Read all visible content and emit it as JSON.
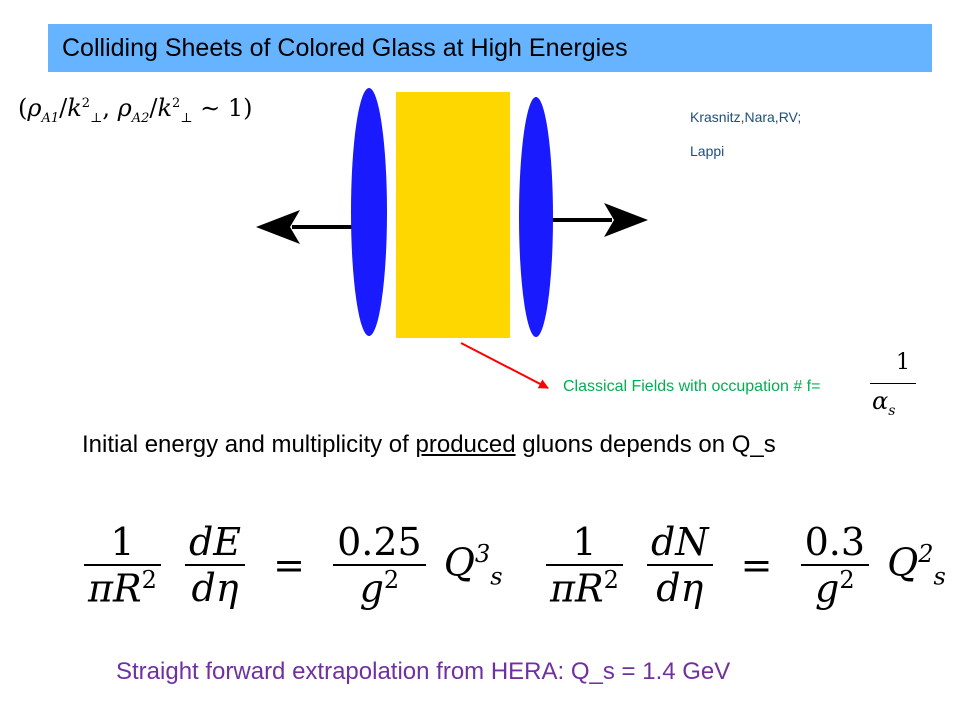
{
  "title": "Colliding Sheets of Colored Glass at High Energies",
  "condition": {
    "open": "(",
    "rho": "ρ",
    "sub1": "A1",
    "slash": "/",
    "k": "k",
    "ksup": "2",
    "ksub": "⊥",
    "comma": ", ",
    "sub2": "A2",
    "sim": " ∼ 1)"
  },
  "credits": [
    "Krasnitz,Nara,RV;",
    "Lappi"
  ],
  "classical_fields": "Classical Fields with occupation # f=",
  "occupation": {
    "numerator": "1",
    "denominator": "α",
    "den_sub": "s"
  },
  "body": {
    "part1": "Initial energy and multiplicity of ",
    "underlined": "produced",
    "part2": " gluons depends on Q_s"
  },
  "formula_energy": {
    "one": "1",
    "den": "πR",
    "den_sup": "2",
    "dnum": "dE",
    "dden": "dη",
    "eq": "=",
    "coef": "0.25",
    "coef_den": "g",
    "coef_den_sup": "2",
    "Q": "Q",
    "Q_sup": "3",
    "Q_sub": "s"
  },
  "formula_number": {
    "one": "1",
    "den": "πR",
    "den_sup": "2",
    "dnum": "dN",
    "dden": "dη",
    "eq": "=",
    "coef": "0.3",
    "coef_den": "g",
    "coef_den_sup": "2",
    "Q": "Q",
    "Q_sup": "2",
    "Q_sub": "s"
  },
  "footer": "Straight forward extrapolation from HERA: Q_s = 1.4 GeV",
  "colors": {
    "title_bar": "#66b3ff",
    "sheet": "#1a1aff",
    "glass": "#ffd700",
    "pointer_arrow": "#ff0000",
    "classical_text": "#00b050",
    "credits_text": "#1f4e79",
    "footer_text": "#7030a0"
  }
}
